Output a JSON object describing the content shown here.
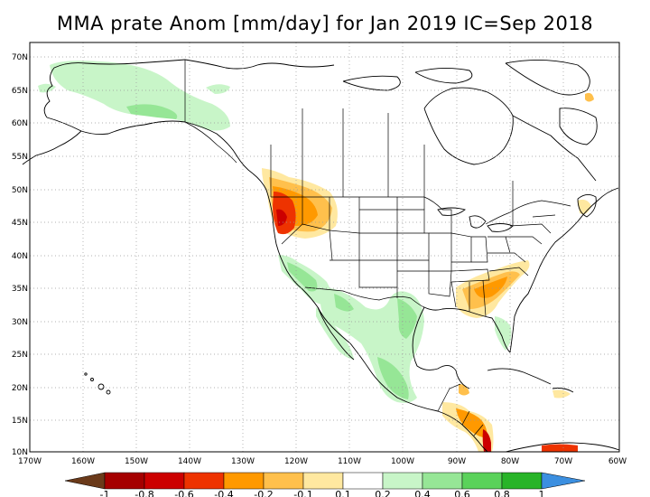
{
  "title": "MMA prate Anom [mm/day] for Jan 2019 IC=Sep 2018",
  "map": {
    "lat_labels": [
      "70N",
      "65N",
      "60N",
      "55N",
      "50N",
      "45N",
      "40N",
      "35N",
      "30N",
      "25N",
      "20N",
      "15N",
      "10N"
    ],
    "lon_labels": [
      "170W",
      "160W",
      "150W",
      "140W",
      "130W",
      "120W",
      "110W",
      "100W",
      "90W",
      "80W",
      "70W",
      "60W"
    ]
  },
  "colorbar": {
    "labels": [
      "-1",
      "-0.8",
      "-0.6",
      "-0.4",
      "-0.2",
      "-0.1",
      "0.1",
      "0.2",
      "0.4",
      "0.6",
      "0.8",
      "1"
    ],
    "colors": [
      "#6b3a1a",
      "#a50000",
      "#cc0000",
      "#ee3300",
      "#ff9900",
      "#ffc04c",
      "#ffe8a0",
      "#ffffff",
      "#c8f5c8",
      "#96e696",
      "#5ad25a",
      "#28b428",
      "#0a8c0a",
      "#3b8fe0"
    ]
  },
  "colors": {
    "dry_weak": "#ffe8a0",
    "dry_mid": "#ffc04c",
    "dry_strong": "#ff9900",
    "dry_stronger": "#ee3300",
    "dry_max": "#cc0000",
    "wet_weak": "#c8f5c8",
    "wet_mid": "#96e696",
    "wet_strong": "#5ad25a"
  }
}
